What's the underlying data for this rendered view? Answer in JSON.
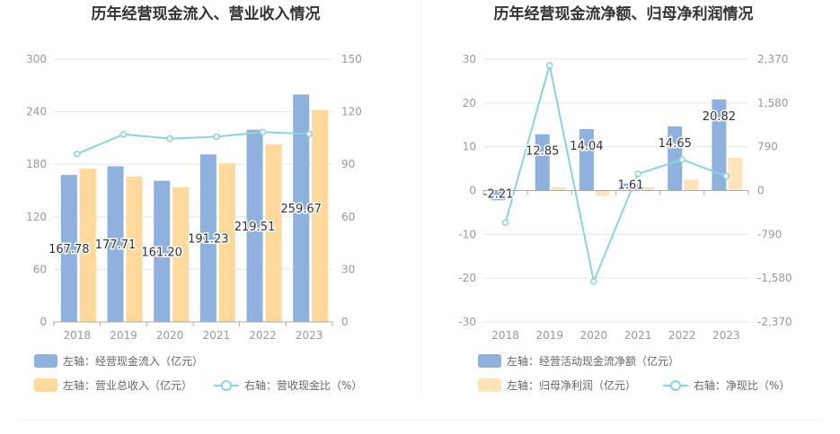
{
  "chart_data": [
    {
      "type": "bar",
      "title": "历年经营现金流入、营业收入情况",
      "categories": [
        "2018",
        "2019",
        "2020",
        "2021",
        "2022",
        "2023"
      ],
      "y_left": {
        "ticks": [
          "0",
          "60",
          "120",
          "180",
          "240",
          "300"
        ],
        "range": [
          0,
          300
        ]
      },
      "y_right": {
        "ticks": [
          "0",
          "30",
          "60",
          "90",
          "120",
          "150"
        ],
        "range": [
          0,
          150
        ]
      },
      "series": [
        {
          "name": "左轴：经营现金流入（亿元）",
          "kind": "bar",
          "axis": "left",
          "color": "#8eb1de",
          "values": [
            167.78,
            177.71,
            161.2,
            191.23,
            219.51,
            259.67
          ],
          "labels": [
            "167.78",
            "177.71",
            "161.20",
            "191.23",
            "219.51",
            "259.67"
          ]
        },
        {
          "name": "左轴：营业总收入（亿元）",
          "kind": "bar",
          "axis": "left",
          "color": "#ffd99b",
          "values": [
            175,
            166,
            154,
            181,
            203,
            242
          ]
        },
        {
          "name": "右轴：营收现金比（%）",
          "kind": "line",
          "axis": "right",
          "color": "#8ad4dd",
          "values": [
            95.9,
            107.1,
            104.6,
            105.7,
            108.4,
            107.3
          ]
        }
      ]
    },
    {
      "type": "bar",
      "title": "历年经营现金流净额、归母净利润情况",
      "categories": [
        "2018",
        "2019",
        "2020",
        "2021",
        "2022",
        "2023"
      ],
      "y_left": {
        "ticks": [
          "-30",
          "-20",
          "-10",
          "0",
          "10",
          "20",
          "30"
        ],
        "range": [
          -30,
          30
        ]
      },
      "y_right": {
        "ticks": [
          "-2,370",
          "-1,580",
          "-790",
          "0",
          "790",
          "1,580",
          "2,370"
        ],
        "range": [
          -2370,
          2370
        ]
      },
      "series": [
        {
          "name": "左轴：经营活动现金流净额（亿元）",
          "kind": "bar",
          "axis": "left",
          "color": "#8eb1de",
          "values": [
            -2.21,
            12.85,
            14.04,
            1.61,
            14.65,
            20.82
          ],
          "labels": [
            "-2.21",
            "12.85",
            "14.04",
            "1.61",
            "14.65",
            "20.82"
          ]
        },
        {
          "name": "左轴：归母净利润（亿元）",
          "kind": "bar",
          "axis": "left",
          "color": "#ffe3bd",
          "values": [
            0.2,
            0.8,
            -1.2,
            0.8,
            2.5,
            7.5
          ]
        },
        {
          "name": "右轴：净现比（%）",
          "kind": "line",
          "axis": "right",
          "color": "#8ad4dd",
          "values": [
            -580,
            2260,
            -1640,
            300,
            560,
            260
          ]
        }
      ]
    }
  ]
}
